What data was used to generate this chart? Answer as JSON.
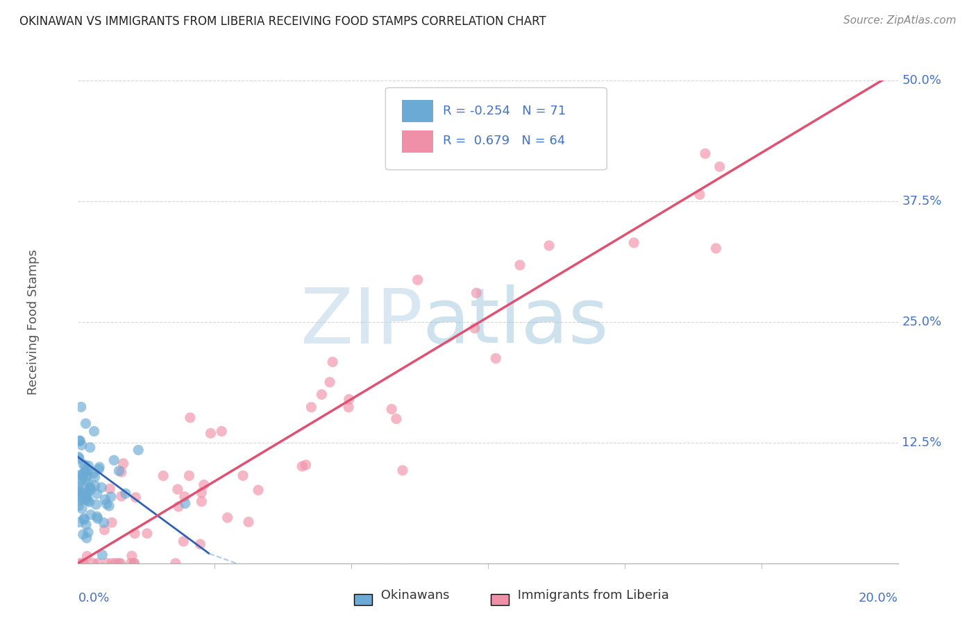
{
  "title": "OKINAWAN VS IMMIGRANTS FROM LIBERIA RECEIVING FOOD STAMPS CORRELATION CHART",
  "source": "Source: ZipAtlas.com",
  "xlim": [
    0.0,
    20.0
  ],
  "ylim": [
    0.0,
    50.0
  ],
  "ylabel_ticks": [
    12.5,
    25.0,
    37.5,
    50.0
  ],
  "ylabel_ticks_grid": [
    0.0,
    12.5,
    25.0,
    37.5,
    50.0
  ],
  "ylabel": "Receiving Food Stamps",
  "okinawan_color": "#6aaad4",
  "liberia_color": "#f090a8",
  "okinawan_R": -0.254,
  "okinawan_N": 71,
  "liberia_R": 0.679,
  "liberia_N": 64,
  "watermark_zip": "ZIP",
  "watermark_atlas": "atlas",
  "background_color": "#ffffff",
  "grid_color": "#cccccc",
  "tick_color": "#4472c4",
  "title_color": "#222222",
  "source_color": "#888888",
  "ylabel_color": "#555555"
}
